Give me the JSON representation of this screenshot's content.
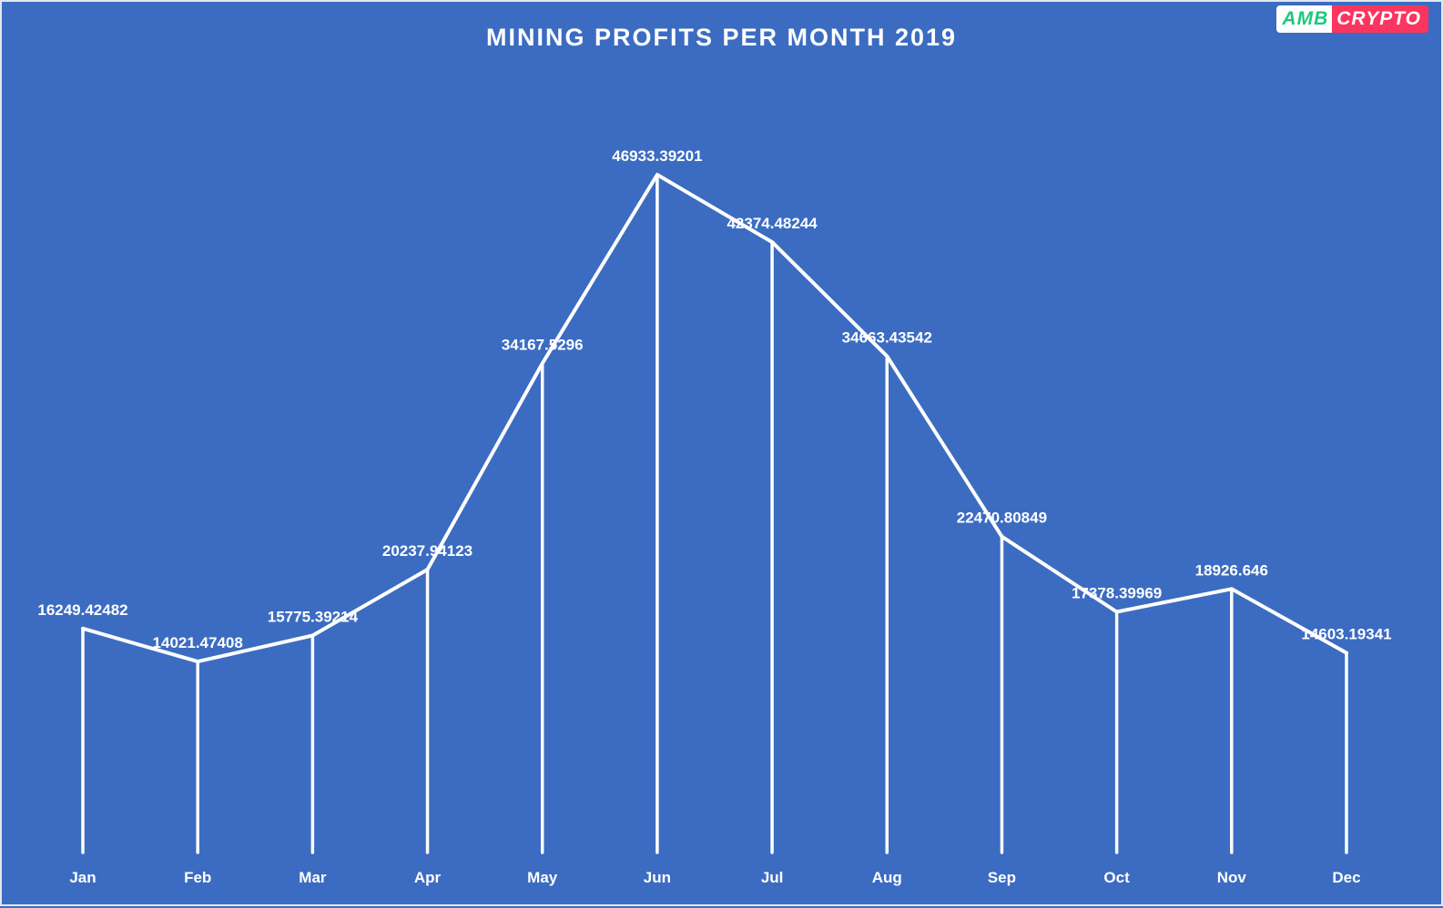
{
  "page": {
    "background_color": "#3b6cc1",
    "border_color": "#e4e7ee",
    "title": "MINING PROFITS PER MONTH 2019",
    "logo": {
      "amb_text": "AMB",
      "crypto_text": "CRYPTO",
      "amb_color": "#1ec77e",
      "amb_bg": "#ffffff",
      "crypto_color": "#ffffff",
      "crypto_bg": "#fb3560"
    }
  },
  "chart_data": {
    "type": "line",
    "title": "MINING PROFITS PER MONTH 2019",
    "categories": [
      "Jan",
      "Feb",
      "Mar",
      "Apr",
      "May",
      "Jun",
      "Jul",
      "Aug",
      "Sep",
      "Oct",
      "Nov",
      "Dec"
    ],
    "values": [
      16249.42482,
      14021.47408,
      15775.39214,
      20237.94123,
      34167.5296,
      46933.39201,
      42374.48244,
      34663.43542,
      22470.80849,
      17378.39969,
      18926.646,
      14603.19341
    ],
    "labels": [
      "16249.42482",
      "14021.47408",
      "15775.39214",
      "20237.94123",
      "34167.5296",
      "46933.39201",
      "42374.48244",
      "34663.43542",
      "22470.80849",
      "17378.39969",
      "18926.646",
      "14603.19341"
    ],
    "xlabel": "",
    "ylabel": "",
    "ylim": [
      0,
      46933.39201
    ],
    "grid": false,
    "legend": false,
    "drop_lines": true,
    "line_color": "#ffffff",
    "label_color": "#ffffff",
    "background_color": "#3b6cc1"
  }
}
